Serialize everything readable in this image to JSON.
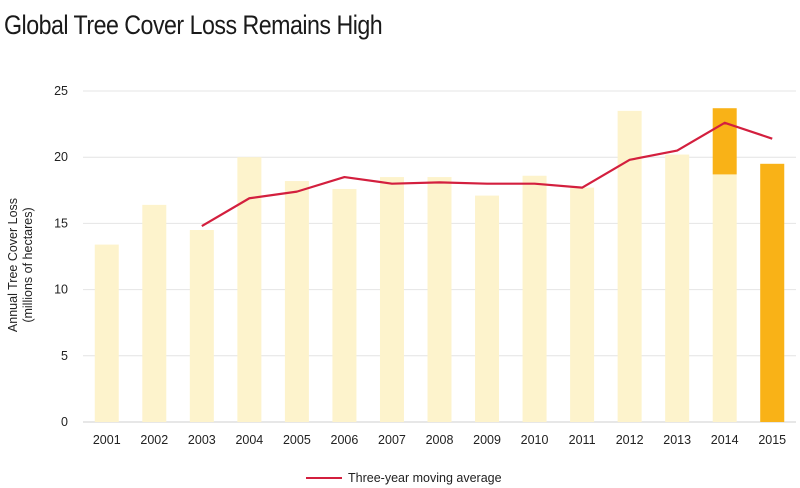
{
  "header": {
    "title": "Global Tree Cover Loss Remains High"
  },
  "chart_data": {
    "type": "bar",
    "ylabel": [
      "Annual Tree Cover Loss",
      "(millions of hectares)"
    ],
    "ylim": [
      0,
      25
    ],
    "yticks": [
      0,
      5,
      10,
      15,
      20,
      25
    ],
    "grid": true,
    "legend_position": "bottom-center",
    "categories": [
      "2001",
      "2002",
      "2003",
      "2004",
      "2005",
      "2006",
      "2007",
      "2008",
      "2009",
      "2010",
      "2011",
      "2012",
      "2013",
      "2014",
      "2015"
    ],
    "series": [
      {
        "type": "bar",
        "values": [
          13.4,
          16.4,
          14.5,
          20.0,
          18.2,
          17.6,
          18.5,
          18.5,
          17.1,
          18.6,
          17.7,
          23.5,
          20.2,
          18.7,
          19.5
        ],
        "color": "#fdf3cc"
      },
      {
        "type": "bar",
        "highlight_ranges": [
          {
            "category": "2014",
            "from": 18.7,
            "to": 23.7
          },
          {
            "category": "2015",
            "from": 0,
            "to": 19.5
          }
        ],
        "color": "#f9b217"
      },
      {
        "type": "line",
        "name": "Three-year moving average",
        "values": [
          null,
          null,
          14.8,
          16.9,
          17.4,
          18.5,
          18.0,
          18.1,
          18.0,
          18.0,
          17.7,
          19.8,
          20.5,
          22.6,
          21.4
        ],
        "color": "#d31f3e"
      }
    ]
  }
}
